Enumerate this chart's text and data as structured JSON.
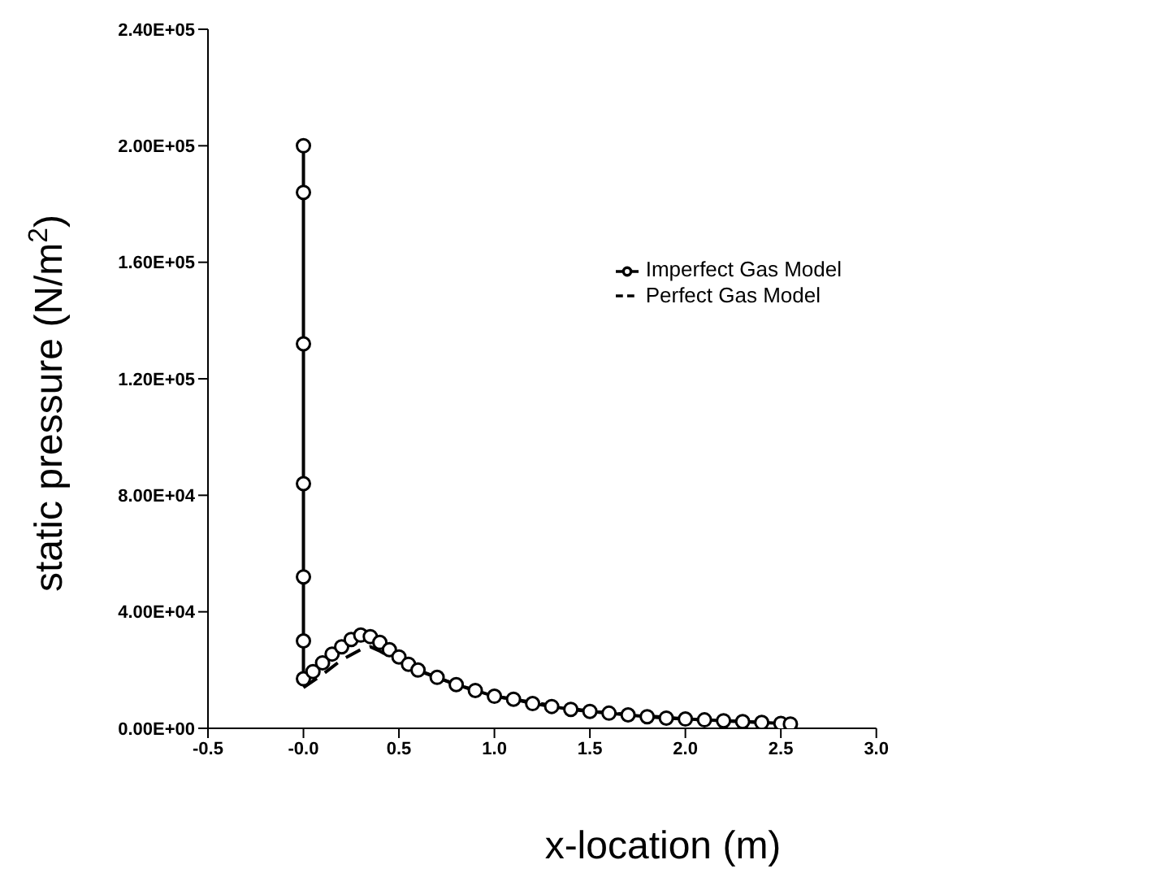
{
  "chart_data": {
    "type": "line",
    "xlabel": "x-location (m)",
    "ylabel": "static pressure (N/m$^{2}$)",
    "xlim": [
      -0.5,
      3.0
    ],
    "xticks": [
      -0.5,
      {
        "value": 0,
        "label": "-0.0"
      },
      0.5,
      {
        "value": 1,
        "label": "1.0"
      },
      1.5,
      {
        "value": 2,
        "label": "2.0"
      },
      2.5,
      {
        "value": 3,
        "label": "3.0"
      }
    ],
    "ylim": [
      0,
      240000
    ],
    "yticks": [
      {
        "value": 0,
        "label": "0.00E+00"
      },
      {
        "value": 40000,
        "label": "4.00E+04"
      },
      {
        "value": 80000,
        "label": "8.00E+04"
      },
      {
        "value": 120000,
        "label": "1.20E+05"
      },
      {
        "value": 160000,
        "label": "1.60E+05"
      },
      {
        "value": 200000,
        "label": "2.00E+05"
      },
      {
        "value": 240000,
        "label": "2.40E+05"
      }
    ],
    "legend": "top right",
    "series": [
      {
        "name": "Imperfect Gas Model",
        "color": "#000000",
        "marker": "circle",
        "line_style": "solid",
        "x": [
          0,
          0,
          0,
          0,
          0,
          0,
          0,
          0.05,
          0.1,
          0.15,
          0.2,
          0.25,
          0.3,
          0.35,
          0.4,
          0.45,
          0.5,
          0.55,
          0.6,
          0.7,
          0.8,
          0.9,
          1.0,
          1.1,
          1.2,
          1.3,
          1.4,
          1.5,
          1.6,
          1.7,
          1.8,
          1.9,
          2.0,
          2.1,
          2.2,
          2.3,
          2.4,
          2.5,
          2.55
        ],
        "values": [
          200000,
          184000,
          132000,
          84000,
          52000,
          30000,
          17000,
          19500,
          22500,
          25500,
          28000,
          30500,
          32000,
          31500,
          29500,
          27000,
          24500,
          22000,
          20000,
          17500,
          15000,
          13000,
          11000,
          10000,
          8500,
          7500,
          6500,
          5800,
          5200,
          4600,
          4000,
          3500,
          3200,
          2900,
          2600,
          2300,
          2000,
          1700,
          1500
        ]
      },
      {
        "name": "Perfect Gas Model",
        "color": "#000000",
        "marker": "none",
        "line_style": "dashed",
        "x": [
          0,
          0.1,
          0.2,
          0.3,
          0.35,
          0.4,
          0.5,
          0.6,
          0.8,
          1.0,
          1.5,
          2.0,
          2.5,
          2.55
        ],
        "values": [
          14000,
          18500,
          23500,
          27000,
          28000,
          26500,
          23000,
          19800,
          15000,
          11000,
          5800,
          3200,
          1700,
          1500
        ]
      }
    ]
  }
}
